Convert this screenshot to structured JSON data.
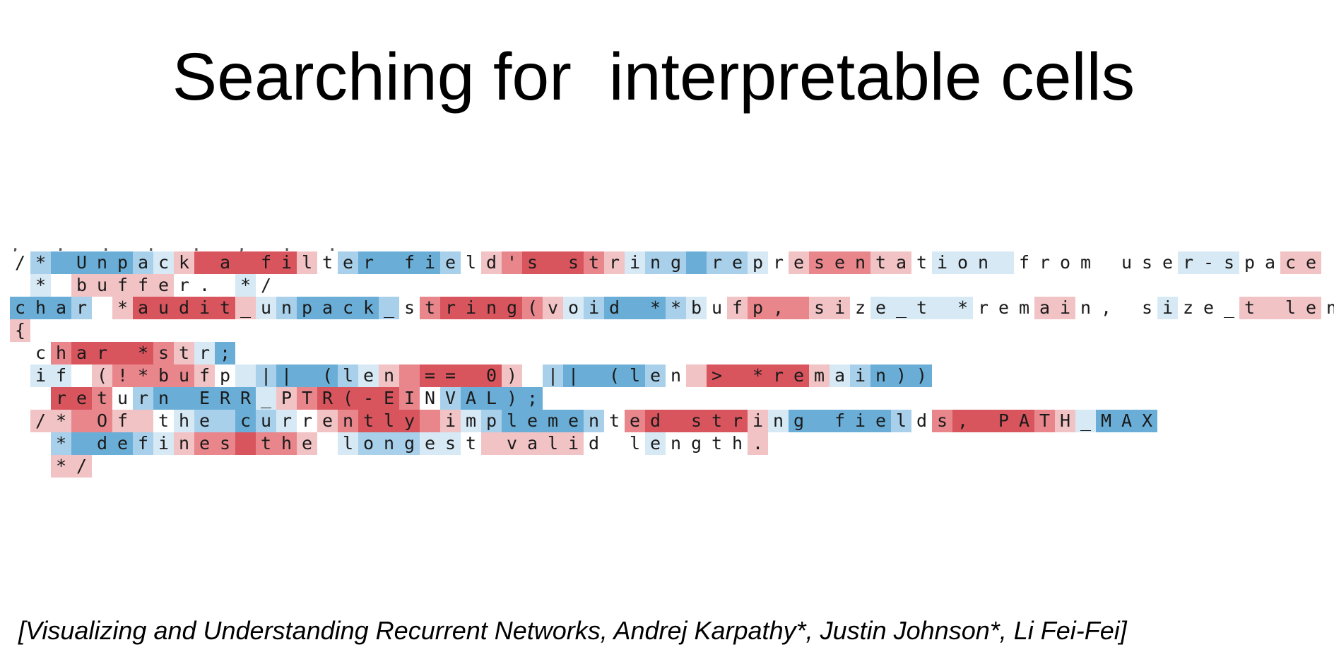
{
  "slide": {
    "title": "Searching for  interpretable cells",
    "citation": "[Visualizing and Understanding Recurrent Networks, Andrej Karpathy*, Justin Johnson*, Li Fei-Fei]"
  },
  "code_lines": [
    "/* Unpack a filter field's string representation from user-space",
    " * buffer. */",
    "char *audit_unpack_string(void **bufp, size_t *remain, size_t len)",
    "{",
    " char *str;",
    " if (!*bufp || (len == 0) || (len > *remain))",
    "  return ERR_PTR(-EINVAL);",
    " /* Of the currently implemented string fields, PATH_MAX",
    "  * defines the longest valid length.",
    "  */"
  ],
  "palette": {
    "red": "#d9555e",
    "red_light": "#e8868c",
    "pink": "#f2c3c5",
    "blue": "#6aaed8",
    "blue_light": "#a8d0ea",
    "pale_blue": "#d6e9f5",
    "white": "#ffffff"
  }
}
